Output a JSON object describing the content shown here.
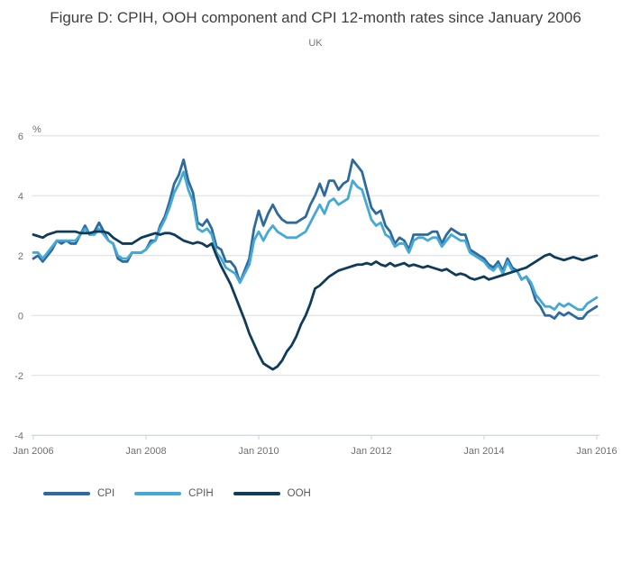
{
  "header": {
    "title": "Figure D: CPIH, OOH component and CPI 12-month rates since January 2006",
    "subtitle": "UK"
  },
  "colors": {
    "cpi": "#2F6A9E",
    "cpih": "#45A9D6",
    "ooh": "#0E3C5A",
    "gridline": "#DDDDDD",
    "axis_line": "#C7D3DD",
    "tick_text": "#707070",
    "title_text": "#3F3F3F",
    "legend_text": "#595959",
    "background": "#FFFFFF"
  },
  "chart_data": {
    "type": "line",
    "title": "Figure D: CPIH, OOH component and CPI 12-month rates since January 2006",
    "subtitle": "UK",
    "unit_label": "%",
    "xlabel": "",
    "ylabel": "%",
    "ylim": [
      -4,
      6
    ],
    "y_ticks": [
      6,
      4,
      2,
      0,
      -2,
      -4
    ],
    "grid": true,
    "legend_position": "bottom",
    "legend": [
      "CPI",
      "CPIH",
      "OOH"
    ],
    "x_start": "Jan 2006",
    "x_end": "Jan 2016",
    "x_frequency": "monthly",
    "x_ticks": [
      {
        "label": "Jan 2006",
        "month": 0
      },
      {
        "label": "Jan 2008",
        "month": 24
      },
      {
        "label": "Jan 2010",
        "month": 48
      },
      {
        "label": "Jan 2012",
        "month": 72
      },
      {
        "label": "Jan 2014",
        "month": 96
      },
      {
        "label": "Jan 2016",
        "month": 120
      }
    ],
    "series": [
      {
        "name": "CPI",
        "color": "#2F6A9E",
        "values": [
          1.9,
          2.0,
          1.8,
          2.0,
          2.2,
          2.5,
          2.4,
          2.5,
          2.4,
          2.4,
          2.7,
          3.0,
          2.7,
          2.8,
          3.1,
          2.8,
          2.5,
          2.4,
          1.9,
          1.8,
          1.8,
          2.1,
          2.1,
          2.1,
          2.2,
          2.5,
          2.5,
          3.0,
          3.3,
          3.8,
          4.4,
          4.7,
          5.2,
          4.5,
          4.1,
          3.1,
          3.0,
          3.2,
          2.9,
          2.3,
          2.2,
          1.8,
          1.8,
          1.6,
          1.1,
          1.5,
          1.9,
          2.9,
          3.5,
          3.0,
          3.4,
          3.7,
          3.4,
          3.2,
          3.1,
          3.1,
          3.1,
          3.2,
          3.3,
          3.7,
          4.0,
          4.4,
          4.0,
          4.5,
          4.5,
          4.2,
          4.4,
          4.5,
          5.2,
          5.0,
          4.8,
          4.2,
          3.6,
          3.4,
          3.5,
          3.0,
          2.8,
          2.4,
          2.6,
          2.5,
          2.2,
          2.7,
          2.7,
          2.7,
          2.7,
          2.8,
          2.8,
          2.4,
          2.7,
          2.9,
          2.8,
          2.7,
          2.7,
          2.2,
          2.1,
          2.0,
          1.9,
          1.7,
          1.6,
          1.8,
          1.5,
          1.9,
          1.6,
          1.5,
          1.2,
          1.3,
          1.0,
          0.5,
          0.3,
          0.0,
          0.0,
          -0.1,
          0.1,
          0.0,
          0.1,
          0.0,
          -0.1,
          -0.1,
          0.1,
          0.2,
          0.3
        ]
      },
      {
        "name": "CPIH",
        "color": "#45A9D6",
        "values": [
          2.1,
          2.1,
          1.9,
          2.1,
          2.3,
          2.5,
          2.5,
          2.5,
          2.5,
          2.5,
          2.7,
          2.9,
          2.7,
          2.7,
          2.9,
          2.7,
          2.5,
          2.4,
          2.0,
          1.9,
          1.9,
          2.1,
          2.1,
          2.1,
          2.2,
          2.4,
          2.5,
          2.9,
          3.2,
          3.6,
          4.1,
          4.4,
          4.8,
          4.2,
          3.8,
          2.9,
          2.8,
          2.9,
          2.7,
          2.1,
          1.9,
          1.6,
          1.5,
          1.4,
          1.1,
          1.4,
          1.7,
          2.5,
          2.8,
          2.5,
          2.8,
          3.0,
          2.8,
          2.7,
          2.6,
          2.6,
          2.6,
          2.7,
          2.8,
          3.1,
          3.4,
          3.7,
          3.4,
          3.8,
          3.9,
          3.7,
          3.8,
          3.9,
          4.5,
          4.3,
          4.2,
          3.7,
          3.2,
          3.0,
          3.1,
          2.7,
          2.6,
          2.3,
          2.4,
          2.4,
          2.1,
          2.5,
          2.6,
          2.6,
          2.5,
          2.6,
          2.6,
          2.3,
          2.5,
          2.7,
          2.6,
          2.5,
          2.5,
          2.1,
          2.0,
          1.9,
          1.8,
          1.6,
          1.5,
          1.7,
          1.4,
          1.8,
          1.5,
          1.5,
          1.2,
          1.3,
          1.1,
          0.7,
          0.5,
          0.3,
          0.3,
          0.2,
          0.4,
          0.3,
          0.4,
          0.3,
          0.2,
          0.2,
          0.4,
          0.5,
          0.6
        ]
      },
      {
        "name": "OOH",
        "color": "#0E3C5A",
        "values": [
          2.7,
          2.65,
          2.6,
          2.7,
          2.75,
          2.8,
          2.8,
          2.8,
          2.8,
          2.8,
          2.75,
          2.75,
          2.75,
          2.8,
          2.8,
          2.8,
          2.75,
          2.6,
          2.5,
          2.4,
          2.4,
          2.4,
          2.5,
          2.6,
          2.65,
          2.7,
          2.75,
          2.7,
          2.75,
          2.75,
          2.7,
          2.6,
          2.5,
          2.45,
          2.4,
          2.45,
          2.4,
          2.3,
          2.4,
          2.0,
          1.65,
          1.35,
          1.05,
          0.65,
          0.25,
          -0.15,
          -0.6,
          -0.95,
          -1.3,
          -1.6,
          -1.7,
          -1.8,
          -1.7,
          -1.5,
          -1.2,
          -1.0,
          -0.7,
          -0.3,
          0.0,
          0.4,
          0.9,
          1.0,
          1.15,
          1.3,
          1.4,
          1.5,
          1.55,
          1.6,
          1.65,
          1.7,
          1.7,
          1.75,
          1.7,
          1.8,
          1.7,
          1.65,
          1.75,
          1.65,
          1.7,
          1.75,
          1.65,
          1.7,
          1.65,
          1.6,
          1.65,
          1.6,
          1.55,
          1.5,
          1.55,
          1.45,
          1.35,
          1.4,
          1.35,
          1.25,
          1.2,
          1.25,
          1.3,
          1.2,
          1.25,
          1.3,
          1.35,
          1.4,
          1.45,
          1.5,
          1.55,
          1.6,
          1.7,
          1.8,
          1.9,
          2.0,
          2.05,
          1.95,
          1.9,
          1.85,
          1.9,
          1.95,
          1.9,
          1.85,
          1.9,
          1.95,
          2.0
        ]
      }
    ]
  }
}
